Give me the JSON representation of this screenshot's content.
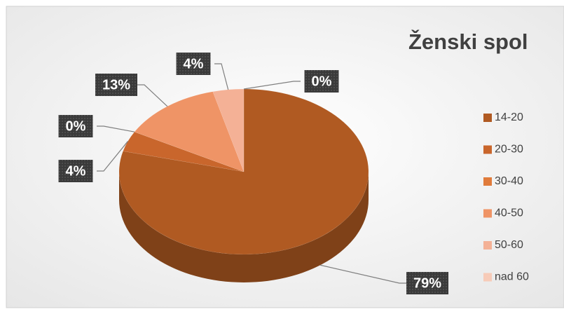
{
  "chart_data": {
    "type": "pie",
    "title": "Ženski spol",
    "categories": [
      "14-20",
      "20-30",
      "30-40",
      "40-50",
      "50-60",
      "nad 60"
    ],
    "values": [
      79,
      4,
      0,
      13,
      4,
      0
    ],
    "value_labels": [
      "79%",
      "4%",
      "0%",
      "13%",
      "4%",
      "0%"
    ],
    "colors": [
      "#b05a22",
      "#c9662c",
      "#e07b3b",
      "#ef9466",
      "#f4b196",
      "#f7cbb8"
    ],
    "legend": "right"
  }
}
